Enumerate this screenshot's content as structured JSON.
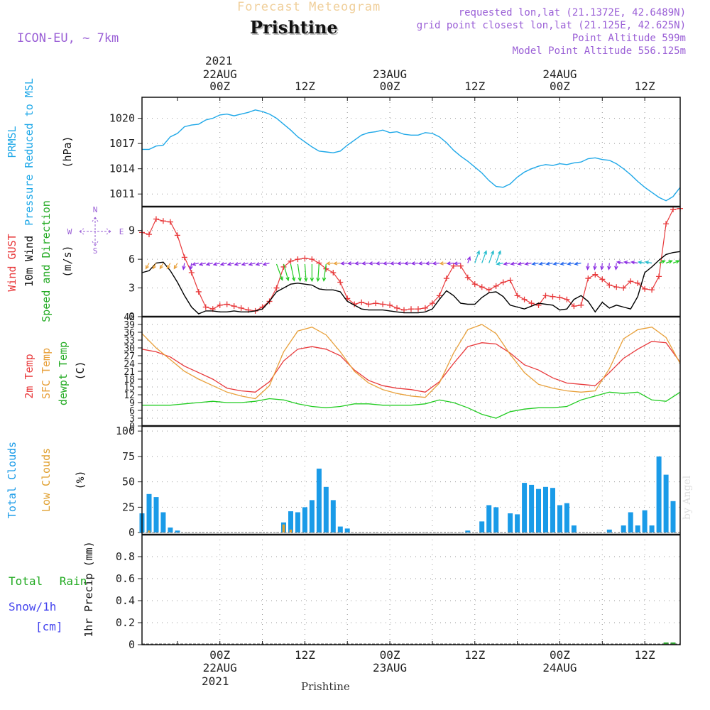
{
  "header": {
    "subtitle": "Forecast Meteogram",
    "title": "Prishtine",
    "model": "ICON-EU, ~ 7km",
    "requested": "requested lon,lat (21.1372E, 42.6489N)",
    "gridpoint": "grid point closest lon,lat (21.125E, 42.625N)",
    "point_alt": "Point Altitude 599m",
    "model_alt": "Model Point Altitude 556.125m"
  },
  "footer": {
    "station": "Prishtine",
    "credit": "by Angel"
  },
  "time_axis": {
    "top_year": "2021",
    "bottom_year": "2021",
    "ticks": [
      {
        "h": 0,
        "hour": "00Z",
        "date": "22AUG"
      },
      {
        "h": 12,
        "hour": "12Z",
        "date": ""
      },
      {
        "h": 24,
        "hour": "00Z",
        "date": "23AUG"
      },
      {
        "h": 36,
        "hour": "12Z",
        "date": ""
      },
      {
        "h": 48,
        "hour": "00Z",
        "date": "24AUG"
      },
      {
        "h": 60,
        "hour": "12Z",
        "date": ""
      }
    ],
    "range_hours": [
      -11,
      65
    ]
  },
  "colors": {
    "pressure": "#1fa8e8",
    "gust": "#e8393b",
    "wind": "#000000",
    "temp": "#e8393b",
    "sfc": "#e8a03a",
    "dew": "#22cc22",
    "total_cloud": "#1a9be8",
    "low_cloud": "#e0a030",
    "rain": "#22aa22",
    "snow": "#4444ee",
    "purple": "#9a5fd6"
  },
  "chart_data": [
    {
      "type": "line",
      "panel": "pressure",
      "labels": [
        "PRMSL",
        "Pressure Reduced to MSL",
        "(hPa)"
      ],
      "ylim": [
        1009.5,
        1022.5
      ],
      "yticks": [
        1011,
        1014,
        1017,
        1020
      ],
      "series": [
        {
          "name": "PRMSL",
          "x": [
            -11,
            -10,
            -9,
            -8,
            -7,
            -6,
            -5,
            -4,
            -3,
            -2,
            -1,
            0,
            1,
            2,
            3,
            4,
            5,
            6,
            7,
            8,
            9,
            10,
            11,
            12,
            13,
            14,
            15,
            16,
            17,
            18,
            19,
            20,
            21,
            22,
            23,
            24,
            25,
            26,
            27,
            28,
            29,
            30,
            31,
            32,
            33,
            34,
            35,
            36,
            37,
            38,
            39,
            40,
            41,
            42,
            43,
            44,
            45,
            46,
            47,
            48,
            49,
            50,
            51,
            52,
            53,
            54,
            55,
            56,
            57,
            58,
            59,
            60,
            61,
            62,
            63,
            64,
            65
          ],
          "values": [
            1016.3,
            1016.3,
            1016.7,
            1016.8,
            1017.8,
            1018.2,
            1019.0,
            1019.2,
            1019.3,
            1019.8,
            1020.0,
            1020.4,
            1020.5,
            1020.3,
            1020.5,
            1020.7,
            1021.0,
            1020.8,
            1020.5,
            1020.0,
            1019.3,
            1018.6,
            1017.8,
            1017.2,
            1016.6,
            1016.1,
            1016.0,
            1015.9,
            1016.1,
            1016.8,
            1017.4,
            1018.0,
            1018.3,
            1018.4,
            1018.6,
            1018.3,
            1018.4,
            1018.1,
            1018.0,
            1018.0,
            1018.3,
            1018.2,
            1017.8,
            1017.1,
            1016.2,
            1015.5,
            1014.9,
            1014.2,
            1013.5,
            1012.6,
            1011.9,
            1011.8,
            1012.2,
            1013.0,
            1013.6,
            1014.0,
            1014.3,
            1014.5,
            1014.4,
            1014.6,
            1014.5,
            1014.7,
            1014.8,
            1015.2,
            1015.3,
            1015.1,
            1015.0,
            1014.6,
            1014.0,
            1013.3,
            1012.5,
            1011.8,
            1011.2,
            1010.6,
            1010.2,
            1010.7,
            1011.8
          ]
        }
      ]
    },
    {
      "type": "line",
      "panel": "wind",
      "labels": [
        "Wind GUST",
        "10m Wind",
        "Speed and Direction",
        "(m/s)"
      ],
      "compass": {
        "n": "N",
        "s": "S",
        "w": "W",
        "e": "E"
      },
      "ylim": [
        0,
        11.5
      ],
      "yticks": [
        0,
        3,
        6,
        9
      ],
      "series": [
        {
          "name": "Wind GUST",
          "x": [
            -11,
            -10,
            -9,
            -8,
            -7,
            -6,
            -5,
            -4,
            -3,
            -2,
            -1,
            0,
            1,
            2,
            3,
            4,
            5,
            6,
            7,
            8,
            9,
            10,
            11,
            12,
            13,
            14,
            15,
            16,
            17,
            18,
            19,
            20,
            21,
            22,
            23,
            24,
            25,
            26,
            27,
            28,
            29,
            30,
            31,
            32,
            33,
            34,
            35,
            36,
            37,
            38,
            39,
            40,
            41,
            42,
            43,
            44,
            45,
            46,
            47,
            48,
            49,
            50,
            51,
            52,
            53,
            54,
            55,
            56,
            57,
            58,
            59,
            60,
            61,
            62,
            63,
            64,
            65
          ],
          "values": [
            8.8,
            8.6,
            10.2,
            10.0,
            9.9,
            8.5,
            6.2,
            4.6,
            2.6,
            1.0,
            0.8,
            1.2,
            1.3,
            1.1,
            0.9,
            0.7,
            0.6,
            1.0,
            1.6,
            3.0,
            5.2,
            5.8,
            6.0,
            6.1,
            6.0,
            5.6,
            5.0,
            4.6,
            3.6,
            1.9,
            1.3,
            1.5,
            1.3,
            1.4,
            1.3,
            1.2,
            0.9,
            0.7,
            0.8,
            0.8,
            0.9,
            1.4,
            2.2,
            4.0,
            5.3,
            5.3,
            4.1,
            3.4,
            3.1,
            2.8,
            3.2,
            3.6,
            3.8,
            2.2,
            1.8,
            1.4,
            1.2,
            2.2,
            2.1,
            2.0,
            1.8,
            1.1,
            1.2,
            4.0,
            4.4,
            3.9,
            3.3,
            3.1,
            3.0,
            3.7,
            3.5,
            2.9,
            2.8,
            4.2,
            9.7,
            11.2,
            11.3
          ]
        },
        {
          "name": "10m Wind",
          "x": [
            -11,
            -10,
            -9,
            -8,
            -7,
            -6,
            -5,
            -4,
            -3,
            -2,
            -1,
            0,
            1,
            2,
            3,
            4,
            5,
            6,
            7,
            8,
            9,
            10,
            11,
            12,
            13,
            14,
            15,
            16,
            17,
            18,
            19,
            20,
            21,
            22,
            23,
            24,
            25,
            26,
            27,
            28,
            29,
            30,
            31,
            32,
            33,
            34,
            35,
            36,
            37,
            38,
            39,
            40,
            41,
            42,
            43,
            44,
            45,
            46,
            47,
            48,
            49,
            50,
            51,
            52,
            53,
            54,
            55,
            56,
            57,
            58,
            59,
            60,
            61,
            62,
            63,
            64,
            65
          ],
          "values": [
            4.6,
            4.8,
            5.6,
            5.7,
            4.8,
            3.6,
            2.2,
            1.0,
            0.3,
            0.6,
            0.6,
            0.5,
            0.5,
            0.6,
            0.5,
            0.5,
            0.6,
            0.8,
            1.6,
            2.6,
            3.0,
            3.4,
            3.5,
            3.4,
            3.3,
            2.9,
            2.8,
            2.8,
            2.6,
            1.6,
            1.2,
            0.8,
            0.7,
            0.7,
            0.7,
            0.6,
            0.5,
            0.4,
            0.4,
            0.4,
            0.5,
            0.8,
            1.8,
            2.7,
            2.2,
            1.4,
            1.3,
            1.3,
            2.0,
            2.5,
            2.6,
            2.1,
            1.2,
            1.0,
            0.8,
            1.1,
            1.4,
            1.3,
            1.2,
            0.7,
            0.8,
            1.8,
            2.2,
            1.6,
            0.5,
            1.5,
            0.9,
            1.2,
            1.0,
            0.8,
            2.1,
            4.6,
            5.2,
            5.9,
            6.5,
            6.7,
            6.8
          ]
        }
      ]
    },
    {
      "type": "line",
      "panel": "temperature",
      "labels": [
        "2m Temp",
        "SFC Temp",
        "dewpt Temp",
        "(C)"
      ],
      "ylim": [
        0,
        42
      ],
      "yticks": [
        0,
        3,
        6,
        9,
        12,
        15,
        18,
        21,
        24,
        27,
        30,
        33,
        36,
        39,
        42
      ],
      "series": [
        {
          "name": "2m Temp",
          "x": [
            -11,
            -9,
            -7,
            -5,
            -3,
            -1,
            1,
            3,
            5,
            7,
            9,
            11,
            13,
            15,
            17,
            19,
            21,
            23,
            25,
            27,
            29,
            31,
            33,
            35,
            37,
            39,
            41,
            43,
            45,
            47,
            49,
            51,
            53,
            55,
            57,
            59,
            61,
            63,
            65
          ],
          "values": [
            29.5,
            28.5,
            26.5,
            23.0,
            20.5,
            18.0,
            14.5,
            13.5,
            13.0,
            17.0,
            25.0,
            29.5,
            30.5,
            29.5,
            27.0,
            21.5,
            17.5,
            15.5,
            14.5,
            14.0,
            13.0,
            17.0,
            24.0,
            30.5,
            32.0,
            31.5,
            28.0,
            23.5,
            21.5,
            18.5,
            16.5,
            16.0,
            15.5,
            20.5,
            26.0,
            29.5,
            32.5,
            32.0,
            24.5
          ]
        },
        {
          "name": "SFC Temp",
          "x": [
            -11,
            -9,
            -7,
            -5,
            -3,
            -1,
            1,
            3,
            5,
            7,
            9,
            11,
            13,
            15,
            17,
            19,
            21,
            23,
            25,
            27,
            29,
            31,
            33,
            35,
            37,
            39,
            41,
            43,
            45,
            47,
            49,
            51,
            53,
            55,
            57,
            59,
            61,
            63,
            65
          ],
          "values": [
            35.5,
            30.0,
            25.5,
            21.0,
            18.0,
            15.5,
            13.0,
            11.5,
            10.5,
            15.5,
            28.5,
            36.5,
            38.0,
            35.0,
            28.5,
            21.0,
            16.5,
            14.0,
            12.5,
            11.5,
            11.0,
            16.5,
            28.0,
            37.0,
            39.0,
            35.5,
            27.5,
            20.5,
            16.0,
            14.5,
            13.5,
            13.0,
            13.5,
            22.0,
            33.5,
            37.0,
            38.0,
            34.0,
            24.0
          ]
        },
        {
          "name": "dewpt Temp",
          "x": [
            -11,
            -9,
            -7,
            -5,
            -3,
            -1,
            1,
            3,
            5,
            7,
            9,
            11,
            13,
            15,
            17,
            19,
            21,
            23,
            25,
            27,
            29,
            31,
            33,
            35,
            37,
            39,
            41,
            43,
            45,
            47,
            49,
            51,
            53,
            55,
            57,
            59,
            61,
            63,
            65
          ],
          "values": [
            8.0,
            8.0,
            8.0,
            8.5,
            9.0,
            9.5,
            9.0,
            9.0,
            9.5,
            10.5,
            10.0,
            8.5,
            7.5,
            7.0,
            7.5,
            8.5,
            8.5,
            8.0,
            8.0,
            8.0,
            8.5,
            10.0,
            9.0,
            7.0,
            4.5,
            3.0,
            5.5,
            6.5,
            7.0,
            7.0,
            7.5,
            10.0,
            11.5,
            13.0,
            12.5,
            13.0,
            10.0,
            9.5,
            13.0
          ]
        }
      ]
    },
    {
      "type": "bar",
      "panel": "clouds",
      "labels": [
        "Total Clouds",
        "Low Clouds",
        "(%)"
      ],
      "ylim": [
        -2,
        105
      ],
      "yticks": [
        0,
        25,
        50,
        75,
        100
      ],
      "series": [
        {
          "name": "Total Clouds",
          "x": [
            -11,
            -10,
            -9,
            -8,
            -7,
            -6,
            -5,
            -4,
            -3,
            -2,
            -1,
            0,
            1,
            2,
            3,
            4,
            5,
            6,
            7,
            8,
            9,
            10,
            11,
            12,
            13,
            14,
            15,
            16,
            17,
            18,
            19,
            20,
            21,
            22,
            23,
            24,
            25,
            26,
            27,
            28,
            29,
            30,
            31,
            32,
            33,
            34,
            35,
            36,
            37,
            38,
            39,
            40,
            41,
            42,
            43,
            44,
            45,
            46,
            47,
            48,
            49,
            50,
            51,
            52,
            53,
            54,
            55,
            56,
            57,
            58,
            59,
            60,
            61,
            62,
            63,
            64,
            65
          ],
          "values": [
            19,
            38,
            35,
            20,
            5,
            2,
            0,
            0,
            0,
            0,
            0,
            0,
            0,
            0,
            0,
            0,
            0,
            0,
            0,
            0,
            10,
            21,
            20,
            25,
            32,
            63,
            45,
            32,
            6,
            4,
            0,
            0,
            0,
            0,
            0,
            0,
            0,
            0,
            0,
            0,
            0,
            0,
            0,
            0,
            0,
            0,
            2,
            0,
            11,
            27,
            25,
            0,
            19,
            18,
            49,
            47,
            43,
            45,
            44,
            27,
            29,
            7,
            0,
            0,
            0,
            0,
            3,
            0,
            7,
            20,
            7,
            22,
            7,
            75,
            57,
            31,
            0
          ]
        },
        {
          "name": "Low Clouds",
          "x": [
            -10,
            9,
            10
          ],
          "values": [
            2,
            8,
            3
          ]
        }
      ]
    },
    {
      "type": "bar",
      "panel": "precip",
      "labels": [
        "Total Rain",
        "Snow/1h",
        "[cm]",
        "1hr Precip (mm)"
      ],
      "ylim": [
        0,
        1.0
      ],
      "yticks": [
        0,
        0.2,
        0.4,
        0.6,
        0.8
      ],
      "tick_labels": [
        "0",
        "0.2",
        "0.4",
        "0.6",
        "0.8"
      ],
      "series": [
        {
          "name": "Total Rain",
          "x": [
            63,
            64
          ],
          "values": [
            0.02,
            0.02
          ]
        },
        {
          "name": "Snow/1h",
          "x": [],
          "values": []
        }
      ]
    }
  ]
}
